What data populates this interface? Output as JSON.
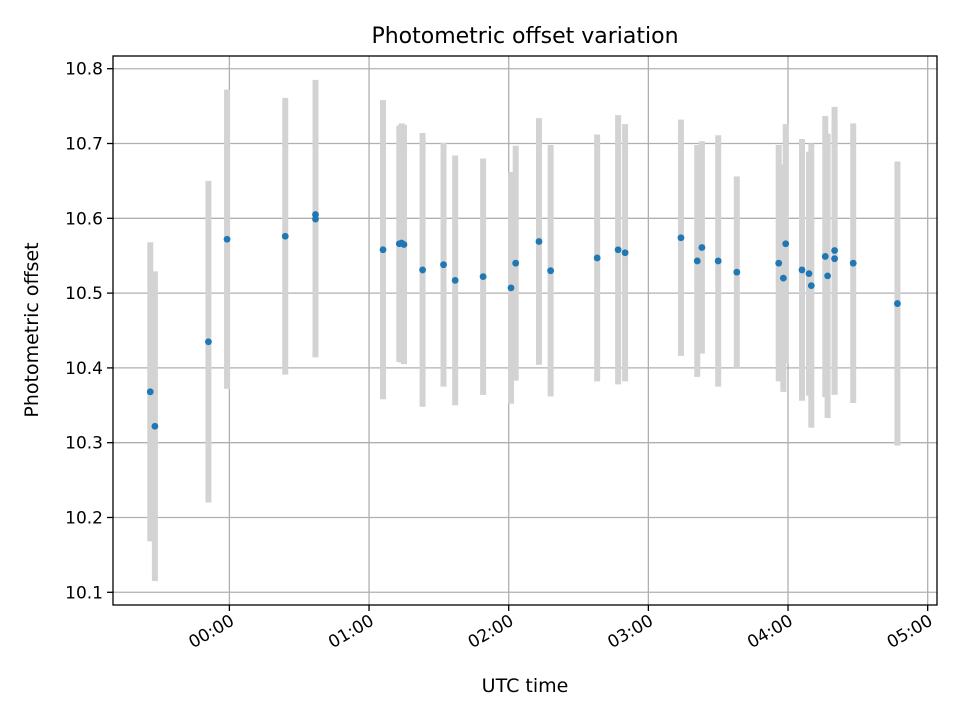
{
  "chart_data": {
    "type": "scatter",
    "title": "Photometric offset variation",
    "xlabel": "UTC time",
    "ylabel": "Photometric offset",
    "grid": true,
    "x_tick_labels": [
      "00:00",
      "01:00",
      "02:00",
      "03:00",
      "04:00",
      "05:00"
    ],
    "x_tick_values_hours": [
      0,
      1,
      2,
      3,
      4,
      5
    ],
    "y_tick_labels": [
      "10.1",
      "10.2",
      "10.3",
      "10.4",
      "10.5",
      "10.6",
      "10.7",
      "10.8"
    ],
    "y_tick_values": [
      10.1,
      10.2,
      10.3,
      10.4,
      10.5,
      10.6,
      10.7,
      10.8
    ],
    "xlim": [
      "-0:50",
      "5:04"
    ],
    "ylim": [
      10.083,
      10.817
    ],
    "colors": {
      "points": "#1f77b4",
      "error_bars": "#d3d3d3",
      "grid": "#b0b0b0"
    },
    "series": [
      {
        "points": [
          {
            "x": "-0:34",
            "y": 10.368,
            "err": 0.2
          },
          {
            "x": "-0:32",
            "y": 10.322,
            "err": 0.207
          },
          {
            "x": "-0:09",
            "y": 10.435,
            "err": 0.215
          },
          {
            "x": "-0:01",
            "y": 10.572,
            "err": 0.2
          },
          {
            "x": "0:24",
            "y": 10.576,
            "err": 0.185
          },
          {
            "x": "0:37",
            "y": 10.605,
            "err": 0.18
          },
          {
            "x": "0:37",
            "y": 10.599,
            "err": 0.185
          },
          {
            "x": "1:06",
            "y": 10.558,
            "err": 0.2
          },
          {
            "x": "1:13",
            "y": 10.566,
            "err": 0.158
          },
          {
            "x": "1:14",
            "y": 10.567,
            "err": 0.16
          },
          {
            "x": "1:15",
            "y": 10.565,
            "err": 0.16
          },
          {
            "x": "1:23",
            "y": 10.531,
            "err": 0.183
          },
          {
            "x": "1:32",
            "y": 10.538,
            "err": 0.163
          },
          {
            "x": "1:37",
            "y": 10.517,
            "err": 0.167
          },
          {
            "x": "1:49",
            "y": 10.522,
            "err": 0.158
          },
          {
            "x": "2:01",
            "y": 10.507,
            "err": 0.155
          },
          {
            "x": "2:03",
            "y": 10.54,
            "err": 0.157
          },
          {
            "x": "2:13",
            "y": 10.569,
            "err": 0.165
          },
          {
            "x": "2:18",
            "y": 10.53,
            "err": 0.168
          },
          {
            "x": "2:38",
            "y": 10.547,
            "err": 0.165
          },
          {
            "x": "2:47",
            "y": 10.558,
            "err": 0.18
          },
          {
            "x": "2:50",
            "y": 10.554,
            "err": 0.172
          },
          {
            "x": "3:14",
            "y": 10.574,
            "err": 0.158
          },
          {
            "x": "3:21",
            "y": 10.543,
            "err": 0.155
          },
          {
            "x": "3:23",
            "y": 10.561,
            "err": 0.142
          },
          {
            "x": "3:30",
            "y": 10.543,
            "err": 0.168
          },
          {
            "x": "3:38",
            "y": 10.528,
            "err": 0.128
          },
          {
            "x": "3:56",
            "y": 10.54,
            "err": 0.158
          },
          {
            "x": "3:58",
            "y": 10.52,
            "err": 0.152
          },
          {
            "x": "3:59",
            "y": 10.566,
            "err": 0.16
          },
          {
            "x": "4:06",
            "y": 10.531,
            "err": 0.175
          },
          {
            "x": "4:09",
            "y": 10.526,
            "err": 0.163
          },
          {
            "x": "4:10",
            "y": 10.51,
            "err": 0.19
          },
          {
            "x": "4:16",
            "y": 10.549,
            "err": 0.188
          },
          {
            "x": "4:17",
            "y": 10.523,
            "err": 0.19
          },
          {
            "x": "4:20",
            "y": 10.557,
            "err": 0.192
          },
          {
            "x": "4:20",
            "y": 10.546,
            "err": 0.182
          },
          {
            "x": "4:28",
            "y": 10.54,
            "err": 0.187
          },
          {
            "x": "4:47",
            "y": 10.486,
            "err": 0.19
          }
        ]
      }
    ]
  }
}
